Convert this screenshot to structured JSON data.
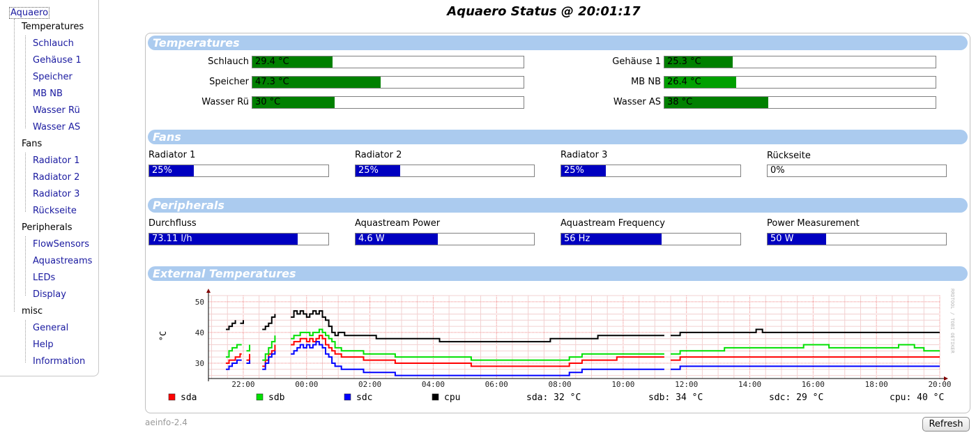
{
  "title": "Aquaero Status @ 20:01:17",
  "sidebar": {
    "root": "Aquaero",
    "groups": [
      {
        "label": "Temperatures",
        "items": [
          "Schlauch",
          "Gehäuse 1",
          "Speicher",
          "MB NB",
          "Wasser Rü",
          "Wasser AS"
        ]
      },
      {
        "label": "Fans",
        "items": [
          "Radiator 1",
          "Radiator 2",
          "Radiator 3",
          "Rückseite"
        ]
      },
      {
        "label": "Peripherals",
        "items": [
          "FlowSensors",
          "Aquastreams",
          "LEDs",
          "Display"
        ]
      },
      {
        "label": "misc",
        "items": [
          "General",
          "Help",
          "Information"
        ]
      }
    ]
  },
  "sections": {
    "temperatures": "Temperatures",
    "fans": "Fans",
    "peripherals": "Peripherals",
    "external": "External Temperatures"
  },
  "temperatures": [
    {
      "label": "Schlauch",
      "value": "29.4 °C",
      "level": 0.295
    },
    {
      "label": "Gehäuse 1",
      "value": "25.3 °C",
      "level": 0.253
    },
    {
      "label": "Speicher",
      "value": "47.3 °C",
      "level": 0.474
    },
    {
      "label": "MB NB",
      "value": "26.4 °C",
      "level": 0.264
    },
    {
      "label": "Wasser Rü",
      "value": "30 °C",
      "level": 0.303
    },
    {
      "label": "Wasser AS",
      "value": "38 °C",
      "level": 0.382
    }
  ],
  "fans": [
    {
      "label": "Radiator 1",
      "value": "25%",
      "level": 0.25
    },
    {
      "label": "Radiator 2",
      "value": "25%",
      "level": 0.25
    },
    {
      "label": "Radiator 3",
      "value": "25%",
      "level": 0.25
    },
    {
      "label": "Rückseite",
      "value": "0%",
      "level": 0
    }
  ],
  "peripherals": [
    {
      "label": "Durchfluss",
      "value": "73.11 l/h",
      "level": 0.83
    },
    {
      "label": "Aquastream Power",
      "value": "4.6 W",
      "level": 0.46
    },
    {
      "label": "Aquastream Frequency",
      "value": "56 Hz",
      "level": 0.56
    },
    {
      "label": "Power Measurement",
      "value": "50 W",
      "level": 0.33
    }
  ],
  "chart_data": {
    "type": "line",
    "ylabel": "°C",
    "ylim": [
      25,
      52
    ],
    "yticks": [
      30,
      40,
      50
    ],
    "xticks": [
      "22:00",
      "00:00",
      "02:00",
      "04:00",
      "06:00",
      "08:00",
      "10:00",
      "12:00",
      "14:00",
      "16:00",
      "18:00",
      "20:00"
    ],
    "watermark": "RRDTOOL / TOBI OETIKER",
    "grid": true,
    "legend_placement": "bottom",
    "series": [
      {
        "name": "sda",
        "color": "#ff0000",
        "current": "sda: 32 °C",
        "points": [
          [
            21.45,
            30
          ],
          [
            21.55,
            31
          ],
          [
            21.7,
            31
          ],
          [
            21.75,
            32
          ],
          [
            21.85,
            32
          ],
          [
            21.9,
            33
          ],
          [
            21.95,
            33
          ],
          [
            22.1,
            null
          ],
          [
            22.1,
            31
          ],
          [
            22.2,
            33
          ],
          [
            22.3,
            null
          ],
          [
            22.6,
            29
          ],
          [
            22.7,
            31
          ],
          [
            22.8,
            33
          ],
          [
            22.9,
            34
          ],
          [
            23.0,
            36
          ],
          [
            23.1,
            null
          ],
          [
            23.5,
            36
          ],
          [
            23.6,
            37
          ],
          [
            23.7,
            37
          ],
          [
            23.8,
            38
          ],
          [
            23.9,
            38
          ],
          [
            24.0,
            37
          ],
          [
            24.1,
            38
          ],
          [
            24.2,
            37
          ],
          [
            24.3,
            38
          ],
          [
            24.4,
            39
          ],
          [
            24.5,
            38
          ],
          [
            24.6,
            36
          ],
          [
            24.7,
            35
          ],
          [
            24.8,
            34
          ],
          [
            24.9,
            33
          ],
          [
            25.1,
            32
          ],
          [
            25.6,
            32
          ],
          [
            25.8,
            31
          ],
          [
            26.6,
            31
          ],
          [
            26.8,
            30
          ],
          [
            29.0,
            30
          ],
          [
            29.2,
            29
          ],
          [
            32.0,
            29
          ],
          [
            32.3,
            30
          ],
          [
            32.5,
            30
          ],
          [
            32.7,
            31
          ],
          [
            33.5,
            31
          ],
          [
            33.8,
            32
          ],
          [
            35.3,
            32
          ],
          [
            35.4,
            null
          ],
          [
            35.5,
            31
          ],
          [
            35.8,
            32
          ],
          [
            36.6,
            32
          ],
          [
            36.8,
            32
          ],
          [
            44.0,
            32
          ]
        ]
      },
      {
        "name": "sdb",
        "color": "#00e000",
        "current": "sdb: 34 °C",
        "points": [
          [
            21.45,
            32
          ],
          [
            21.55,
            34
          ],
          [
            21.65,
            35
          ],
          [
            21.75,
            35
          ],
          [
            21.8,
            36
          ],
          [
            21.95,
            36
          ],
          [
            22.1,
            null
          ],
          [
            22.1,
            34
          ],
          [
            22.2,
            36
          ],
          [
            22.3,
            null
          ],
          [
            22.6,
            31
          ],
          [
            22.7,
            33
          ],
          [
            22.8,
            35
          ],
          [
            22.9,
            37
          ],
          [
            23.0,
            39
          ],
          [
            23.1,
            null
          ],
          [
            23.5,
            38
          ],
          [
            23.6,
            39
          ],
          [
            23.7,
            39
          ],
          [
            23.8,
            40
          ],
          [
            24.0,
            40
          ],
          [
            24.1,
            39
          ],
          [
            24.2,
            40
          ],
          [
            24.4,
            41
          ],
          [
            24.5,
            40
          ],
          [
            24.6,
            39
          ],
          [
            24.7,
            38
          ],
          [
            24.8,
            37
          ],
          [
            24.9,
            35
          ],
          [
            25.1,
            34
          ],
          [
            25.6,
            34
          ],
          [
            25.8,
            33
          ],
          [
            26.6,
            33
          ],
          [
            26.8,
            32
          ],
          [
            29.0,
            32
          ],
          [
            29.2,
            31
          ],
          [
            32.0,
            31
          ],
          [
            32.3,
            32
          ],
          [
            32.7,
            33
          ],
          [
            35.3,
            33
          ],
          [
            35.4,
            null
          ],
          [
            35.5,
            33
          ],
          [
            35.8,
            34
          ],
          [
            37.0,
            34
          ],
          [
            37.2,
            35
          ],
          [
            39.5,
            35
          ],
          [
            39.7,
            36
          ],
          [
            40.3,
            36
          ],
          [
            40.5,
            35
          ],
          [
            42.5,
            35
          ],
          [
            42.7,
            36
          ],
          [
            43.0,
            36
          ],
          [
            43.2,
            35
          ],
          [
            43.5,
            34
          ],
          [
            44.0,
            34
          ]
        ]
      },
      {
        "name": "sdc",
        "color": "#0000ff",
        "current": "sdc: 29 °C",
        "points": [
          [
            21.45,
            28
          ],
          [
            21.55,
            29
          ],
          [
            21.65,
            30
          ],
          [
            21.75,
            30
          ],
          [
            21.8,
            31
          ],
          [
            21.95,
            31
          ],
          [
            22.1,
            null
          ],
          [
            22.1,
            30
          ],
          [
            22.2,
            31
          ],
          [
            22.3,
            null
          ],
          [
            22.6,
            28
          ],
          [
            22.7,
            30
          ],
          [
            22.8,
            32
          ],
          [
            22.9,
            33
          ],
          [
            23.0,
            34
          ],
          [
            23.1,
            null
          ],
          [
            23.5,
            33
          ],
          [
            23.6,
            34
          ],
          [
            23.7,
            35
          ],
          [
            23.8,
            36
          ],
          [
            23.9,
            35
          ],
          [
            24.0,
            36
          ],
          [
            24.1,
            35
          ],
          [
            24.2,
            36
          ],
          [
            24.3,
            37
          ],
          [
            24.4,
            36
          ],
          [
            24.5,
            35
          ],
          [
            24.6,
            33
          ],
          [
            24.7,
            32
          ],
          [
            24.8,
            30
          ],
          [
            24.9,
            29
          ],
          [
            25.1,
            28
          ],
          [
            25.6,
            28
          ],
          [
            25.8,
            27
          ],
          [
            26.6,
            27
          ],
          [
            26.8,
            26
          ],
          [
            29.0,
            26
          ],
          [
            29.2,
            26
          ],
          [
            32.0,
            26
          ],
          [
            32.3,
            27
          ],
          [
            32.7,
            28
          ],
          [
            35.3,
            28
          ],
          [
            35.4,
            null
          ],
          [
            35.5,
            28
          ],
          [
            35.8,
            29
          ],
          [
            44.0,
            29
          ]
        ]
      },
      {
        "name": "cpu",
        "color": "#000000",
        "current": "cpu: 40 °C",
        "points": [
          [
            21.45,
            41
          ],
          [
            21.55,
            42
          ],
          [
            21.65,
            43
          ],
          [
            21.75,
            44
          ],
          [
            21.85,
            null
          ],
          [
            21.9,
            43
          ],
          [
            22.0,
            44
          ],
          [
            22.1,
            null
          ],
          [
            22.6,
            41
          ],
          [
            22.7,
            42
          ],
          [
            22.8,
            43
          ],
          [
            22.9,
            45
          ],
          [
            23.0,
            46
          ],
          [
            23.1,
            null
          ],
          [
            23.5,
            45
          ],
          [
            23.6,
            47
          ],
          [
            23.7,
            46
          ],
          [
            23.8,
            47
          ],
          [
            23.9,
            46
          ],
          [
            24.0,
            45
          ],
          [
            24.1,
            46
          ],
          [
            24.2,
            47
          ],
          [
            24.3,
            46
          ],
          [
            24.4,
            47
          ],
          [
            24.5,
            45
          ],
          [
            24.6,
            44
          ],
          [
            24.7,
            42
          ],
          [
            24.8,
            40
          ],
          [
            24.9,
            39
          ],
          [
            25.0,
            40
          ],
          [
            25.2,
            39
          ],
          [
            26.0,
            39
          ],
          [
            26.2,
            38
          ],
          [
            28.0,
            38
          ],
          [
            28.2,
            37
          ],
          [
            31.5,
            37
          ],
          [
            31.7,
            38
          ],
          [
            33.0,
            38
          ],
          [
            33.2,
            39
          ],
          [
            35.3,
            39
          ],
          [
            35.4,
            null
          ],
          [
            35.5,
            39
          ],
          [
            35.8,
            40
          ],
          [
            38.0,
            40
          ],
          [
            38.2,
            41
          ],
          [
            38.4,
            40
          ],
          [
            44.0,
            40
          ]
        ]
      }
    ]
  },
  "version": "aeinfo-2.4",
  "refresh_label": "Refresh"
}
